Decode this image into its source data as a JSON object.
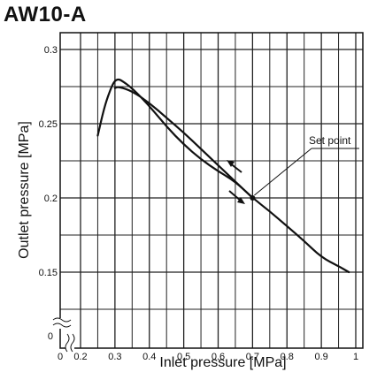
{
  "chart_data": {
    "type": "line",
    "title": "AW10-A",
    "xlabel": "Inlet pressure [MPa]",
    "ylabel": "Outlet pressure [MPa]",
    "xlim": [
      0.2,
      1.0
    ],
    "ylim": [
      0.13,
      0.3
    ],
    "x_axis_break": true,
    "y_axis_break": true,
    "origin_label": "0",
    "x_origin_label": "0",
    "x_ticks": [
      "0.2",
      "0.3",
      "0.4",
      "0.5",
      "0.6",
      "0.7",
      "0.8",
      "0.9",
      "1"
    ],
    "y_ticks": [
      "0.3",
      "0.25",
      "0.2",
      "0.15"
    ],
    "grid": true,
    "series": [
      {
        "values_note": "",
        "x": [
          0.25,
          0.27,
          0.29,
          0.3,
          0.31,
          0.32,
          0.35,
          0.4,
          0.45,
          0.5,
          0.55,
          0.6,
          0.65,
          0.7
        ],
        "y": [
          0.242,
          0.262,
          0.275,
          0.279,
          0.28,
          0.279,
          0.274,
          0.262,
          0.248,
          0.236,
          0.226,
          0.218,
          0.211,
          0.2
        ]
      },
      {
        "x": [
          0.3,
          0.31,
          0.35,
          0.4,
          0.45,
          0.5,
          0.55,
          0.6,
          0.65,
          0.7,
          0.75,
          0.8,
          0.85,
          0.9,
          0.95,
          0.98
        ],
        "y": [
          0.274,
          0.275,
          0.272,
          0.264,
          0.254,
          0.244,
          0.233,
          0.222,
          0.211,
          0.2,
          0.191,
          0.181,
          0.171,
          0.16,
          0.154,
          0.15
        ]
      }
    ],
    "annotations": [
      {
        "text": "Set point",
        "x": 0.7,
        "y": 0.2
      }
    ]
  }
}
